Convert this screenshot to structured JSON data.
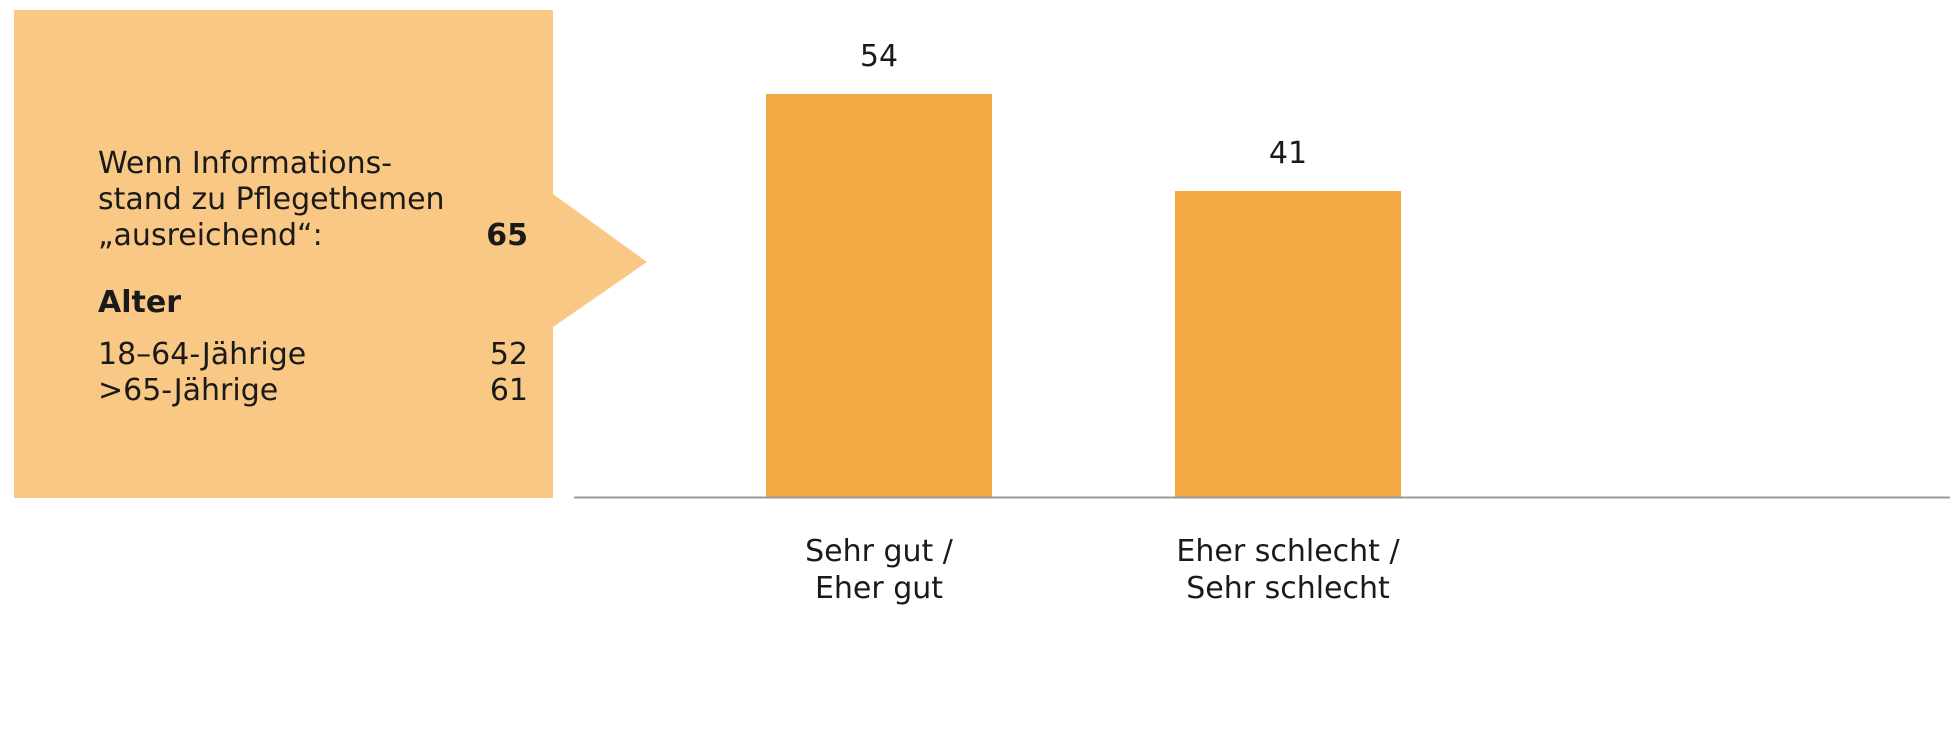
{
  "callout": {
    "heading_line1": "Wenn Informations-",
    "heading_line2": "stand zu Pflegethemen",
    "heading_line3": "„ausreichend“:",
    "heading_value": "65",
    "section_title": "Alter",
    "rows": [
      {
        "label": "18–64-Jährige",
        "value": "52"
      },
      {
        "label": ">65-Jährige",
        "value": "61"
      }
    ],
    "color": "#F9C884"
  },
  "chart_data": {
    "type": "bar",
    "categories": [
      [
        "Sehr gut /",
        "Eher gut"
      ],
      [
        "Eher schlecht /",
        "Sehr schlecht"
      ]
    ],
    "values": [
      54,
      41
    ],
    "bar_color": "#F4AA42",
    "axis_color": "#999999",
    "ylim": [
      0,
      54
    ]
  }
}
